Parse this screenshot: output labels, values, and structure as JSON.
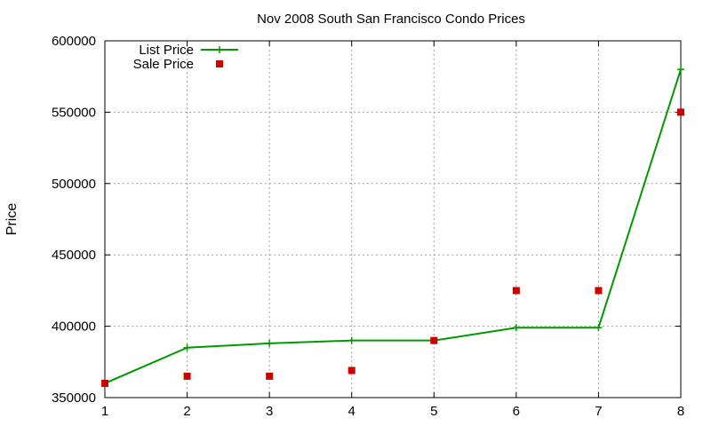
{
  "chart_data": {
    "type": "line",
    "title": "Nov 2008 South San Francisco Condo Prices",
    "xlabel": "",
    "ylabel": "Price",
    "x": [
      1,
      2,
      3,
      4,
      5,
      6,
      7,
      8
    ],
    "xlim": [
      1,
      8
    ],
    "ylim": [
      350000,
      600000
    ],
    "xticks": [
      1,
      2,
      3,
      4,
      5,
      6,
      7,
      8
    ],
    "yticks": [
      350000,
      400000,
      450000,
      500000,
      550000,
      600000
    ],
    "grid": true,
    "legend_position": "top-left",
    "series": [
      {
        "name": "List Price",
        "style": "line+cross",
        "color": "#009900",
        "values": [
          360000,
          385000,
          388000,
          390000,
          390000,
          399000,
          399000,
          580000
        ]
      },
      {
        "name": "Sale Price",
        "style": "square",
        "color": "#cc0000",
        "values": [
          360000,
          365000,
          365000,
          369000,
          390000,
          425000,
          425000,
          550000
        ]
      }
    ]
  }
}
